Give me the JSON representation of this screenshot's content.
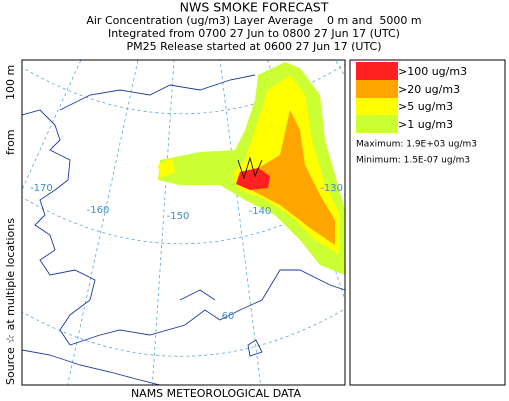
{
  "header": {
    "lines": [
      "NWS SMOKE FORECAST",
      "Air Concentration (ug/m3) Layer Average    0 m and  5000 m",
      "Integrated from 0700 27 Jun to 0800 27 Jun 17 (UTC)",
      "PM25 Release started at 0600 27 Jun 17 (UTC)"
    ]
  },
  "legend": {
    "items": [
      {
        "label": ">100 ug/m3"
      },
      {
        "label": ">20 ug/m3"
      },
      {
        "label": ">5 ug/m3"
      },
      {
        "label": ">1 ug/m3"
      }
    ],
    "maximum": "Maximum: 1.9E+03 ug/m3",
    "minimum": "Minimum: 1.5E-07 ug/m3"
  },
  "map": {
    "graticule_labels": [
      "-170",
      "-160",
      "-150",
      "-140",
      "-130",
      "60"
    ]
  },
  "side_label": {
    "parts": [
      "Source ☆ at multiple locations",
      "from",
      "100 m"
    ]
  },
  "footer": "NAMS METEOROLOGICAL DATA"
}
